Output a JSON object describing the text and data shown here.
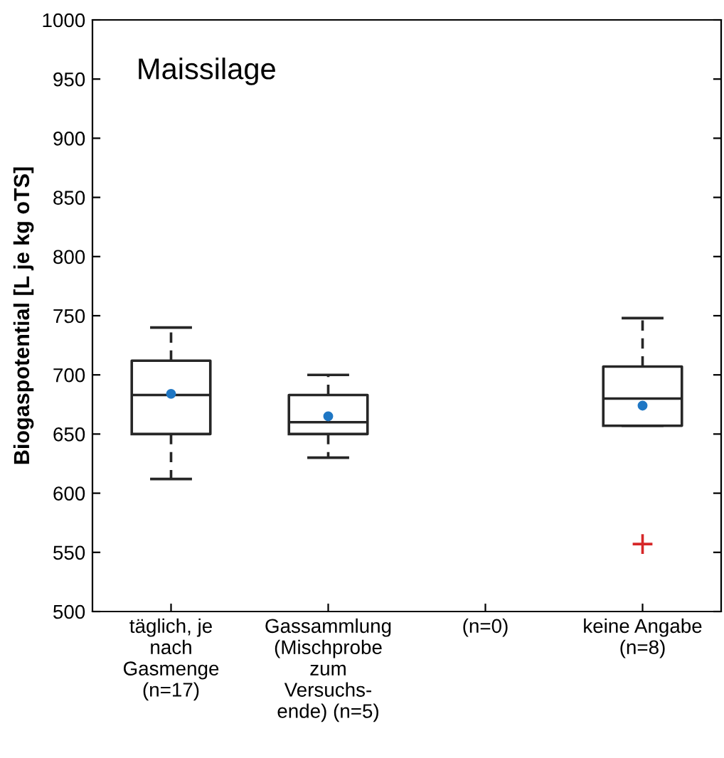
{
  "chart_data": {
    "type": "box",
    "ylabel": "Biogaspotential [L je kg oTS]",
    "annotations": [
      "Maissilage"
    ],
    "categories": [
      "täglich, je\nnach\nGasmenge\n(n=17)",
      "Gassammlung\n(Mischprobe\nzum\nVersuchs-\nende) (n=5)",
      "(n=0)",
      "keine Angabe\n(n=8)"
    ],
    "boxes": [
      {
        "low": 612,
        "q1": 650,
        "median": 683,
        "q3": 712,
        "high": 740,
        "mean": 684
      },
      {
        "low": 630,
        "q1": 650,
        "median": 660,
        "q3": 683,
        "high": 700,
        "mean": 665
      },
      null,
      {
        "low": 657,
        "q1": 657,
        "median": 680,
        "q3": 707,
        "high": 748,
        "mean": 674,
        "outliers": [
          557
        ]
      }
    ],
    "ylim": [
      500,
      1000
    ],
    "yticks": [
      500,
      550,
      600,
      650,
      700,
      750,
      800,
      850,
      900,
      950,
      1000
    ],
    "grid": false
  }
}
